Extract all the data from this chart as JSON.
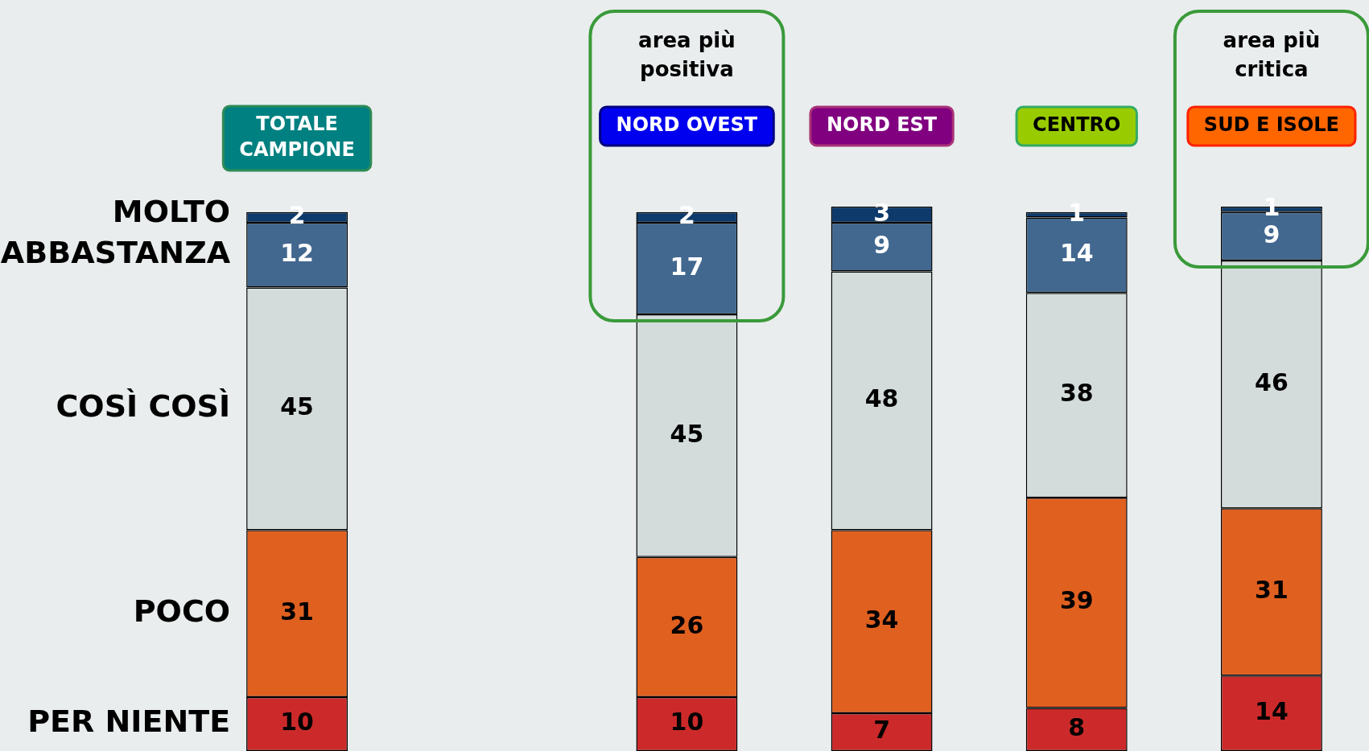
{
  "chart_data": {
    "type": "bar",
    "stacked": true,
    "data_labels": true,
    "legend": false,
    "categories": [
      "TOTALE CAMPIONE",
      null,
      "NORD OVEST",
      "NORD EST",
      "CENTRO",
      "SUD E ISOLE"
    ],
    "series": [
      {
        "name": "PER NIENTE",
        "color": "#cc2a2a",
        "values": [
          10,
          null,
          10,
          7,
          8,
          14
        ]
      },
      {
        "name": "POCO",
        "color": "#e06020",
        "values": [
          31,
          null,
          26,
          34,
          39,
          31
        ]
      },
      {
        "name": "COSÌ COSÌ",
        "color": "#d3dcdb",
        "values": [
          45,
          null,
          45,
          48,
          38,
          46
        ]
      },
      {
        "name": "ABBASTANZA",
        "color": "#426890",
        "values": [
          12,
          null,
          17,
          9,
          14,
          9
        ]
      },
      {
        "name": "MOLTO",
        "color": "#0d3a6b",
        "values": [
          2,
          null,
          2,
          3,
          1,
          1
        ]
      }
    ],
    "annotations": [
      "area più positiva",
      "area più critica"
    ]
  }
}
